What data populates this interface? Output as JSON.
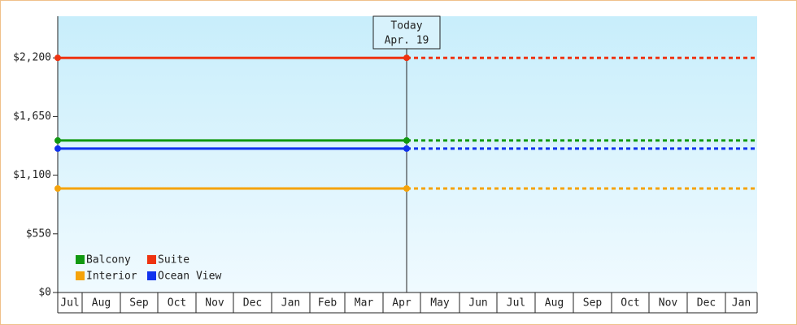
{
  "chart_data": {
    "type": "line",
    "categories": [
      "Jul",
      "Aug",
      "Sep",
      "Oct",
      "Nov",
      "Dec",
      "Jan",
      "Feb",
      "Mar",
      "Apr",
      "May",
      "Jun",
      "Jul",
      "Aug",
      "Sep",
      "Oct",
      "Nov",
      "Dec",
      "Jan"
    ],
    "series": [
      {
        "name": "Balcony",
        "color": "#119911",
        "value": 1425
      },
      {
        "name": "Suite",
        "color": "#ee3311",
        "value": 2200
      },
      {
        "name": "Interior",
        "color": "#f5a30a",
        "value": 975
      },
      {
        "name": "Ocean View",
        "color": "#1133ee",
        "value": 1349
      }
    ],
    "annotation": {
      "title": "Today",
      "date": "Apr. 19"
    },
    "ylim": [
      0,
      2590
    ],
    "yticks": [
      {
        "value": 0,
        "label": "$0"
      },
      {
        "value": 550,
        "label": "$550"
      },
      {
        "value": 1100,
        "label": "$1,100"
      },
      {
        "value": 1650,
        "label": "$1,650"
      },
      {
        "value": 2200,
        "label": "$2,200"
      }
    ],
    "legend": "bottom-left"
  }
}
